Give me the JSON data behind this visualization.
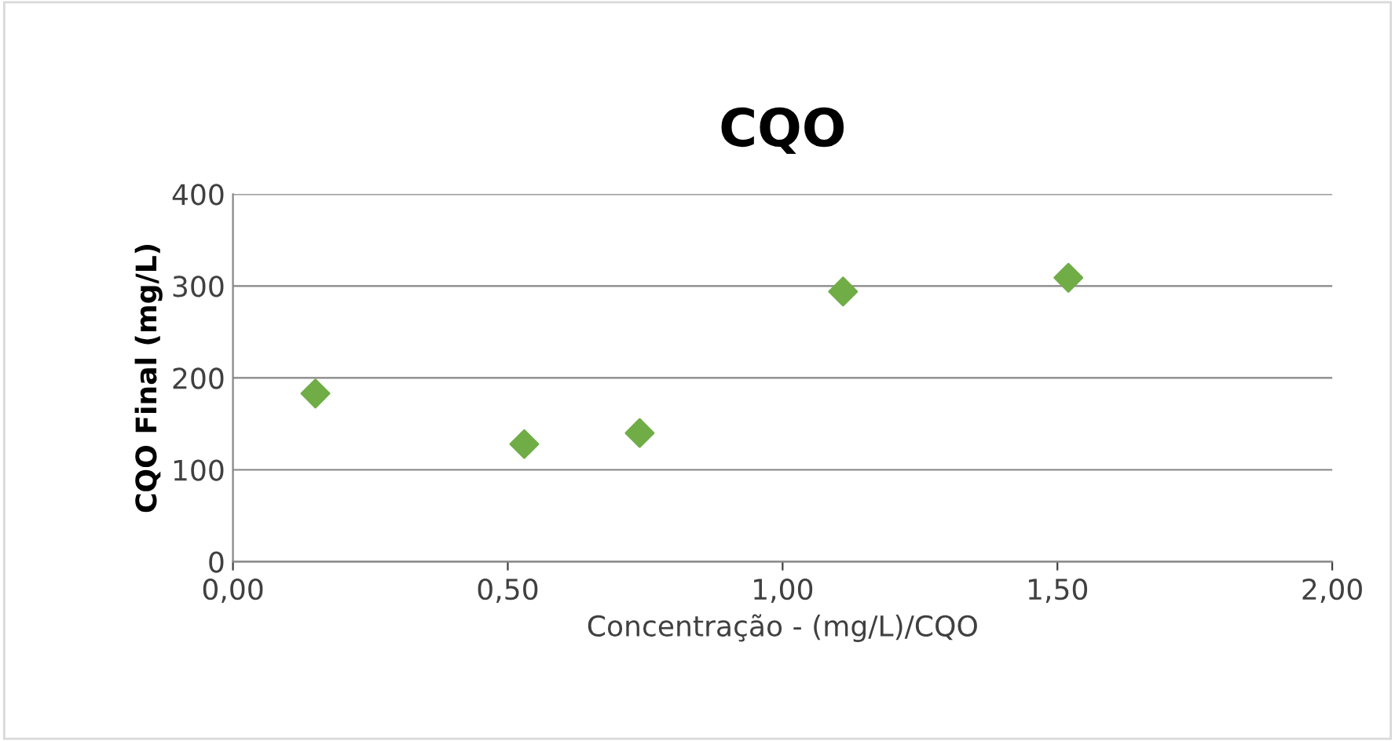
{
  "chart_data": {
    "type": "scatter",
    "title": "CQO",
    "xlabel": "Concentração - (mg/L)/CQO",
    "ylabel": "CQO Final (mg/L)",
    "x": [
      0.15,
      0.53,
      0.74,
      1.11,
      1.52
    ],
    "series": [
      {
        "color": "#70ad47",
        "values": [
          183,
          128,
          140,
          294,
          309
        ]
      }
    ],
    "marker": "diamond",
    "grid": "y",
    "xlim": [
      0,
      2
    ],
    "xticks": [
      {
        "value": 0,
        "label": "0,00"
      },
      {
        "value": 0.5,
        "label": "0,50"
      },
      {
        "value": 1,
        "label": "1,00"
      },
      {
        "value": 1.5,
        "label": "1,50"
      },
      {
        "value": 2,
        "label": "2,00"
      }
    ],
    "ylim": [
      0,
      400
    ],
    "yticks": [
      0,
      100,
      200,
      300,
      400
    ]
  }
}
